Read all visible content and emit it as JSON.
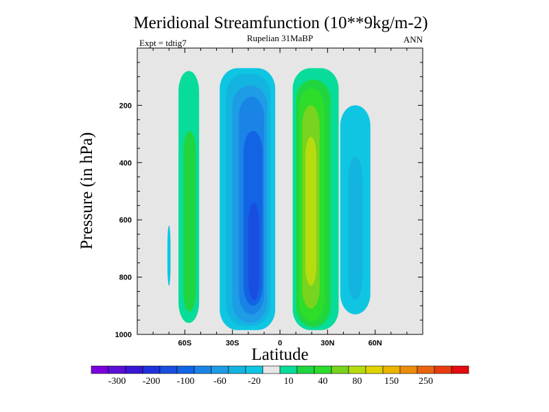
{
  "chart_data": {
    "type": "contour",
    "title": "Meridional Streamfunction (10**9kg/m-2)",
    "subtitle_center": "Rupelian  31MaBP",
    "subtitle_left": "Expt = tdtig7",
    "subtitle_right": "ANN",
    "xlabel": "Latitude",
    "ylabel": "Pressure (in hPa)",
    "xlim": [
      -90,
      90
    ],
    "ylim": [
      1000,
      0
    ],
    "x_ticks": [
      {
        "value": -60,
        "label": "60S"
      },
      {
        "value": -30,
        "label": "30S"
      },
      {
        "value": 0,
        "label": "0"
      },
      {
        "value": 30,
        "label": "30N"
      },
      {
        "value": 60,
        "label": "60N"
      }
    ],
    "y_ticks": [
      {
        "value": 200,
        "label": "200"
      },
      {
        "value": 400,
        "label": "400"
      },
      {
        "value": 600,
        "label": "600"
      },
      {
        "value": 800,
        "label": "800"
      },
      {
        "value": 1000,
        "label": "1000"
      }
    ],
    "background_color": "#e6e6e6",
    "levels": [
      {
        "value": -300,
        "color": "#7a00dc"
      },
      {
        "value": -250,
        "color": "#5a10d8"
      },
      {
        "value": -200,
        "color": "#3a16d6"
      },
      {
        "value": -150,
        "color": "#2030dc"
      },
      {
        "value": -100,
        "color": "#1a4ee0"
      },
      {
        "value": -80,
        "color": "#1264e4"
      },
      {
        "value": -60,
        "color": "#1a84e6"
      },
      {
        "value": -40,
        "color": "#1e9ce6"
      },
      {
        "value": -20,
        "color": "#14b4e0"
      },
      {
        "value": -10,
        "color": "#0ec6e2"
      },
      {
        "value": 0,
        "color": "#e6e6e6"
      },
      {
        "value": 10,
        "color": "#08dc9a"
      },
      {
        "value": 20,
        "color": "#20d640"
      },
      {
        "value": 40,
        "color": "#2edc2a"
      },
      {
        "value": 60,
        "color": "#78d41e"
      },
      {
        "value": 80,
        "color": "#b6dc10"
      },
      {
        "value": 100,
        "color": "#e0d400"
      },
      {
        "value": 150,
        "color": "#ecb400"
      },
      {
        "value": 200,
        "color": "#ec8c0a"
      },
      {
        "value": 250,
        "color": "#ea640e"
      },
      {
        "value": 300,
        "color": "#e83c10"
      },
      {
        "value": 350,
        "color": "#e40c10"
      }
    ],
    "colorbar_labels": [
      "-300",
      "-200",
      "-100",
      "-60",
      "-20",
      "10",
      "40",
      "80",
      "150",
      "250"
    ],
    "colorbar_label_positions": [
      1,
      3,
      5,
      7,
      9,
      11,
      13,
      15,
      17,
      19
    ],
    "regions": [
      {
        "name": "sh-ferrel-cell-outer",
        "value": 10,
        "lat": [
          -64,
          -51
        ],
        "p": [
          80,
          960
        ]
      },
      {
        "name": "sh-ferrel-cell-core",
        "value": 20,
        "lat": [
          -61,
          -53
        ],
        "p": [
          290,
          920
        ]
      },
      {
        "name": "sh-hadley-cell-outer",
        "value": -10,
        "lat": [
          -38,
          -3
        ],
        "p": [
          70,
          985
        ]
      },
      {
        "name": "sh-hadley-cell-20",
        "value": -20,
        "lat": [
          -34,
          -6
        ],
        "p": [
          90,
          970
        ]
      },
      {
        "name": "sh-hadley-cell-40",
        "value": -40,
        "lat": [
          -30,
          -8
        ],
        "p": [
          130,
          960
        ]
      },
      {
        "name": "sh-hadley-cell-60",
        "value": -60,
        "lat": [
          -26,
          -10
        ],
        "p": [
          170,
          930
        ]
      },
      {
        "name": "sh-hadley-cell-80",
        "value": -80,
        "lat": [
          -23,
          -11
        ],
        "p": [
          290,
          900
        ]
      },
      {
        "name": "sh-hadley-cell-core",
        "value": -100,
        "lat": [
          -20,
          -13
        ],
        "p": [
          540,
          880
        ]
      },
      {
        "name": "nh-hadley-cell-outer",
        "value": 10,
        "lat": [
          8,
          37
        ],
        "p": [
          70,
          985
        ]
      },
      {
        "name": "nh-hadley-cell-20",
        "value": 20,
        "lat": [
          10,
          32
        ],
        "p": [
          110,
          975
        ]
      },
      {
        "name": "nh-hadley-cell-40",
        "value": 40,
        "lat": [
          12,
          28
        ],
        "p": [
          140,
          955
        ]
      },
      {
        "name": "nh-hadley-cell-60",
        "value": 60,
        "lat": [
          14,
          25
        ],
        "p": [
          200,
          910
        ]
      },
      {
        "name": "nh-hadley-cell-core",
        "value": 80,
        "lat": [
          16,
          23
        ],
        "p": [
          310,
          830
        ]
      },
      {
        "name": "nh-ferrel-cell-outer",
        "value": -10,
        "lat": [
          38,
          57
        ],
        "p": [
          200,
          930
        ]
      },
      {
        "name": "nh-ferrel-cell-core",
        "value": -20,
        "lat": [
          43,
          52
        ],
        "p": [
          380,
          880
        ]
      },
      {
        "name": "sh-polar-blip",
        "value": -10,
        "lat": [
          -71,
          -69
        ],
        "p": [
          620,
          830
        ]
      }
    ]
  }
}
